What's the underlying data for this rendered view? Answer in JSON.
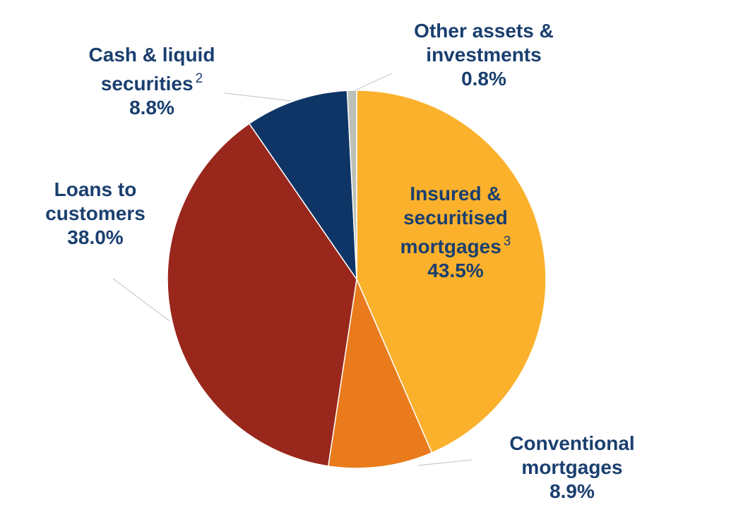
{
  "chart_data": {
    "type": "pie",
    "title": "",
    "slices": [
      {
        "label_lines": [
          "Insured &",
          "securitised",
          "mortgages"
        ],
        "footnote": "3",
        "value": 43.5,
        "value_label": "43.5%",
        "color": "#fbb12c"
      },
      {
        "label_lines": [
          "Conventional",
          "mortgages"
        ],
        "footnote": "",
        "value": 8.9,
        "value_label": "8.9%",
        "color": "#e97b1c"
      },
      {
        "label_lines": [
          "Loans to",
          "customers"
        ],
        "footnote": "",
        "value": 38.0,
        "value_label": "38.0%",
        "color": "#99271c"
      },
      {
        "label_lines": [
          "Cash & liquid",
          "securities"
        ],
        "footnote": "2",
        "value": 8.8,
        "value_label": "8.8%",
        "color": "#0e3566"
      },
      {
        "label_lines": [
          "Other assets &",
          "investments"
        ],
        "footnote": "",
        "value": 0.8,
        "value_label": "0.8%",
        "color": "#bcc0b6"
      }
    ],
    "start": "12 o'clock",
    "direction": "clockwise",
    "legend": "none"
  }
}
